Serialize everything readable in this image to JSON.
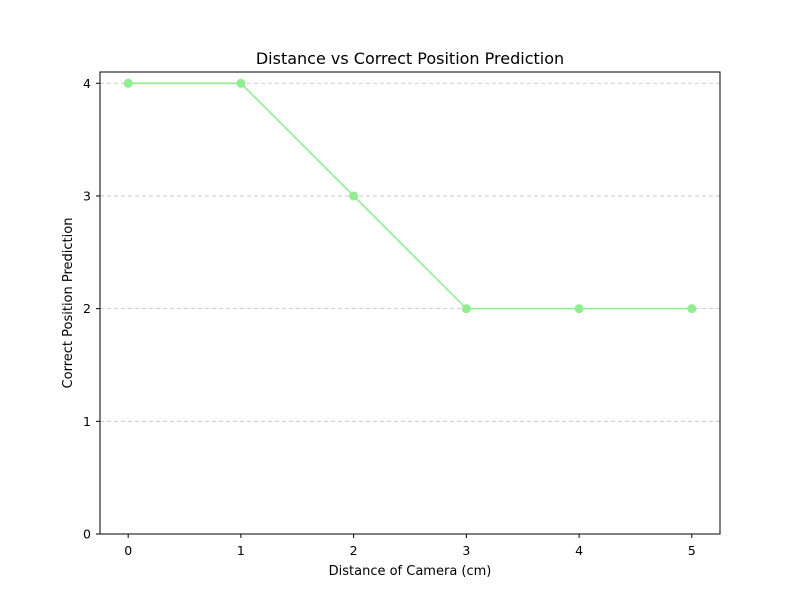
{
  "chart_data": {
    "type": "line",
    "title": "Distance vs Correct Position Prediction",
    "xlabel": "Distance of Camera (cm)",
    "ylabel": "Correct Position Prediction",
    "x": [
      0,
      1,
      2,
      3,
      4,
      5
    ],
    "series": [
      {
        "values": [
          4,
          4,
          3,
          2,
          2,
          2
        ],
        "color": "#90ee90"
      }
    ],
    "xlim": [
      -0.25,
      5.25
    ],
    "ylim": [
      0,
      4.1
    ],
    "xticks": [
      "0",
      "1",
      "2",
      "3",
      "4",
      "5"
    ],
    "yticks": [
      "0",
      "1",
      "2",
      "3",
      "4"
    ],
    "grid": {
      "axis": "y",
      "style": "dashed",
      "color": "#c0c0c0"
    },
    "legend": "none"
  }
}
